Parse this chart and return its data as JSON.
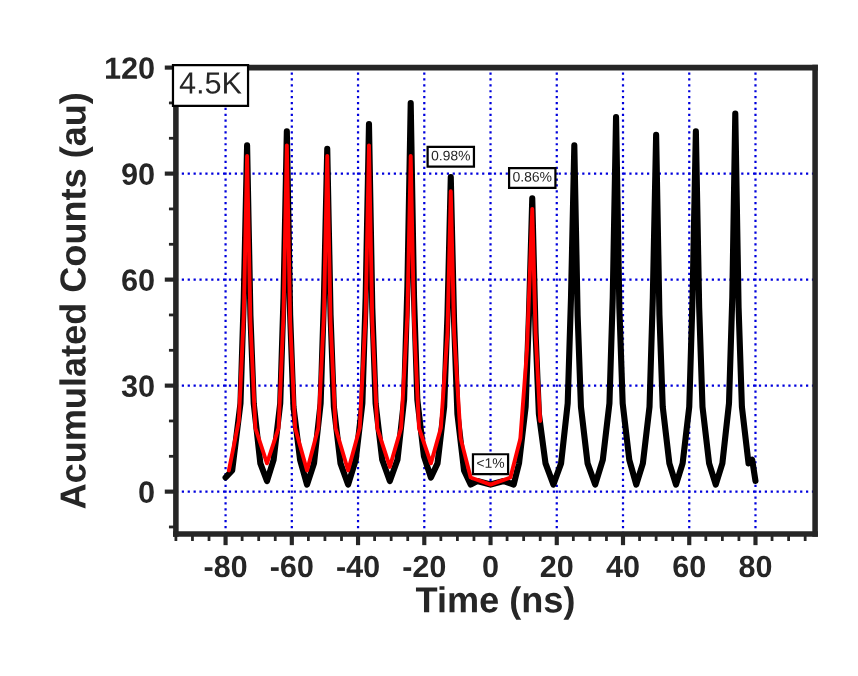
{
  "chart_data": {
    "type": "line",
    "xlabel": "Time (ns)",
    "ylabel": "Acumulated Counts (au)",
    "xlim": [
      -95,
      98
    ],
    "ylim": [
      -12,
      120
    ],
    "xticks": [
      -80,
      -60,
      -40,
      -20,
      0,
      20,
      40,
      60,
      80
    ],
    "yticks": [
      0,
      30,
      60,
      90,
      120
    ],
    "grid": true,
    "line_style": "solid",
    "series": [
      {
        "color": "#000000",
        "x": [
          -80,
          -78,
          -75.5,
          -74.5,
          -73.5,
          -72.5,
          -71.5,
          -69.5,
          -67.5,
          -65.5,
          -63.5,
          -62.5,
          -61.5,
          -60.5,
          -59.5,
          -57.5,
          -55.4,
          -53.3,
          -51.3,
          -50.3,
          -49.3,
          -48.3,
          -47.3,
          -45.3,
          -43,
          -40.7,
          -38.7,
          -37.7,
          -36.7,
          -35.7,
          -34.7,
          -32.7,
          -30.4,
          -28.1,
          -26.1,
          -25.1,
          -24.1,
          -23.1,
          -22.1,
          -20.1,
          -18,
          -16,
          -14,
          -13,
          -12,
          -11,
          -10,
          -8,
          -6,
          -4,
          0,
          4,
          7,
          8.6,
          10.6,
          11.6,
          12.6,
          13.6,
          14.6,
          16.6,
          19,
          21.3,
          23.3,
          24.3,
          25.3,
          26.3,
          27.3,
          29.3,
          31.6,
          33.9,
          35.9,
          36.9,
          37.9,
          38.9,
          39.9,
          41.9,
          44,
          46,
          48,
          49,
          50,
          51,
          52,
          54,
          56,
          58,
          60,
          61,
          62,
          63,
          64,
          66,
          68,
          70,
          72,
          73,
          73.9,
          74.9,
          75.9,
          77.9,
          79,
          80
        ],
        "values": [
          4,
          6,
          25,
          55,
          98,
          50,
          25,
          8,
          3,
          9,
          25,
          55,
          102,
          50,
          24,
          9,
          2,
          8,
          25,
          55,
          97,
          50,
          24,
          8,
          2,
          9,
          25,
          55,
          104,
          52,
          25,
          9,
          3,
          9,
          26,
          58,
          110,
          55,
          26,
          10,
          4,
          8,
          24,
          50,
          89,
          48,
          22,
          6,
          2,
          3,
          2,
          3,
          2,
          8,
          24,
          50,
          83,
          45,
          22,
          8,
          2,
          8,
          25,
          55,
          98,
          50,
          24,
          8,
          2,
          9,
          25,
          55,
          106,
          52,
          25,
          9,
          2,
          8,
          24,
          55,
          101,
          50,
          24,
          8,
          2,
          8,
          24,
          55,
          102,
          52,
          24,
          8,
          2,
          8,
          25,
          55,
          107,
          52,
          24,
          8,
          9,
          3
        ]
      },
      {
        "color": "#ff0000",
        "x": [
          -79,
          -76,
          -74.5,
          -73.5,
          -72.5,
          -71,
          -67.5,
          -64,
          -62.5,
          -61.5,
          -60.5,
          -59,
          -55.4,
          -52,
          -50.3,
          -49.3,
          -48.3,
          -46.8,
          -43,
          -39.5,
          -37.7,
          -36.7,
          -35.7,
          -34.2,
          -30.4,
          -27,
          -25.1,
          -24.1,
          -23.1,
          -21.6,
          -18,
          -15,
          -13,
          -12,
          -11,
          -9,
          -6,
          0,
          6,
          9,
          11,
          12.6,
          13.6,
          15
        ],
        "values": [
          6,
          20,
          50,
          95,
          48,
          18,
          8,
          18,
          50,
          98,
          48,
          18,
          6,
          18,
          50,
          95,
          48,
          18,
          6,
          18,
          50,
          98,
          48,
          18,
          7,
          18,
          50,
          95,
          48,
          18,
          8,
          18,
          45,
          85,
          45,
          15,
          4,
          2,
          4,
          15,
          40,
          80,
          45,
          20
        ]
      }
    ],
    "annotations": [
      "4.5K",
      {
        "text": "0.98%",
        "x": -12,
        "y": 89
      },
      {
        "text": "0.86%",
        "x": 12.6,
        "y": 83
      },
      {
        "text": "<1%",
        "x": 0,
        "y": 2
      }
    ]
  }
}
